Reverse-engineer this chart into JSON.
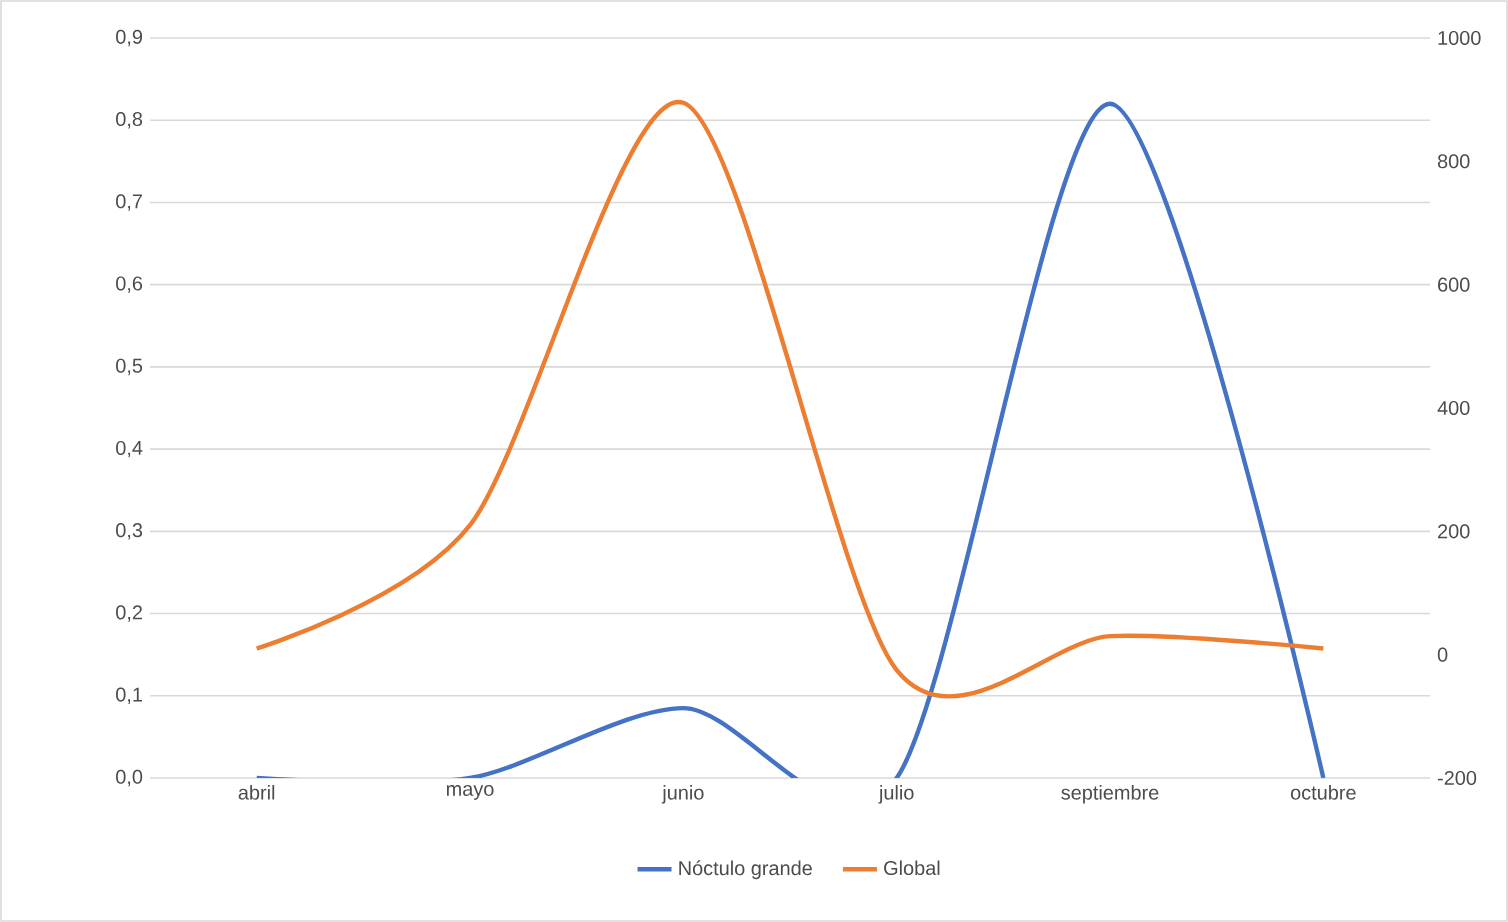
{
  "chart_data": {
    "type": "line",
    "categories": [
      "abril",
      "mayo",
      "junio",
      "julio",
      "septiembre",
      "octubre"
    ],
    "series": [
      {
        "name": "Nóctulo grande",
        "color": "#4472c4",
        "values": [
          0,
          0,
          0.085,
          0,
          0.82,
          0
        ]
      },
      {
        "name": "Global",
        "color": "#ed7d31",
        "axis": "y2",
        "values": [
          10,
          210,
          895,
          -25,
          30,
          10
        ]
      }
    ],
    "ylim": [
      0,
      0.9
    ],
    "yticks": [
      {
        "value": 0,
        "label": "0,0"
      },
      {
        "value": 0.1,
        "label": "0,1"
      },
      {
        "value": 0.2,
        "label": "0,2"
      },
      {
        "value": 0.3,
        "label": "0,3"
      },
      {
        "value": 0.4,
        "label": "0,4"
      },
      {
        "value": 0.5,
        "label": "0,5"
      },
      {
        "value": 0.6,
        "label": "0,6"
      },
      {
        "value": 0.7,
        "label": "0,7"
      },
      {
        "value": 0.8,
        "label": "0,8"
      },
      {
        "value": 0.9,
        "label": "0,9"
      }
    ],
    "y2lim": [
      -200,
      1000
    ],
    "y2ticks": [
      -200,
      0,
      200,
      400,
      600,
      800,
      1000
    ],
    "grid": "y",
    "legend": "bottom"
  }
}
